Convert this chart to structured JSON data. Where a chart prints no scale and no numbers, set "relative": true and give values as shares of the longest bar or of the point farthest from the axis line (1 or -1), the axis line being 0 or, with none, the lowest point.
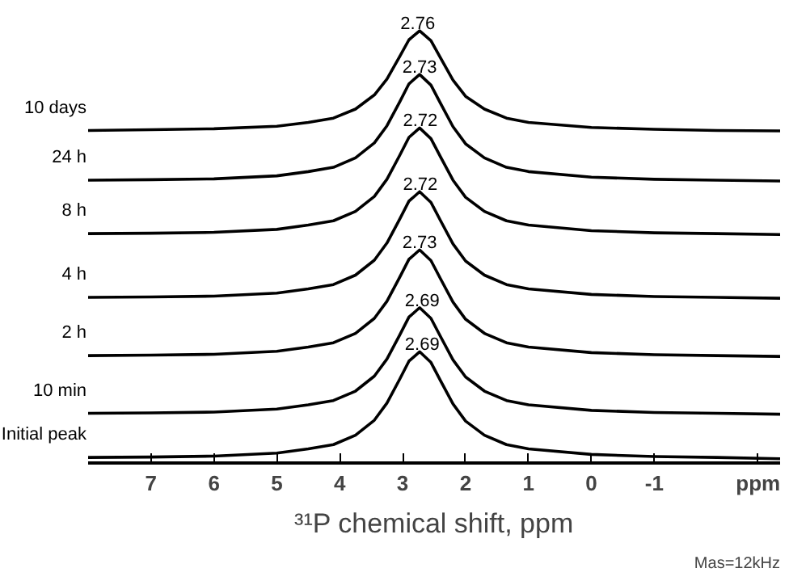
{
  "chart_data": {
    "type": "line",
    "relative": true,
    "xlabel": "³¹P chemical shift, ppm",
    "xlim": [
      8,
      -3
    ],
    "xticks": [
      7,
      6,
      5,
      4,
      3,
      2,
      1,
      0,
      -1,
      {
        "value": -2.65,
        "label": "ppm"
      }
    ],
    "x": [
      8,
      7,
      6,
      5,
      4.5,
      4.1,
      3.75,
      3.45,
      3.25,
      3.05,
      2.9,
      2.73,
      2.55,
      2.4,
      2.2,
      2.0,
      1.7,
      1.35,
      1,
      0,
      -1,
      -2,
      -3
    ],
    "series": [
      {
        "name": "10 days",
        "color": "#000000",
        "values": [
          0.767,
          0.769,
          0.771,
          0.777,
          0.786,
          0.796,
          0.817,
          0.85,
          0.887,
          0.939,
          0.979,
          1.0,
          0.977,
          0.937,
          0.885,
          0.847,
          0.817,
          0.796,
          0.786,
          0.774,
          0.77,
          0.767,
          0.766
        ]
      },
      {
        "name": "24 h",
        "color": "#000000",
        "values": [
          0.651,
          0.652,
          0.654,
          0.661,
          0.671,
          0.681,
          0.703,
          0.738,
          0.778,
          0.833,
          0.876,
          0.898,
          0.873,
          0.831,
          0.776,
          0.736,
          0.703,
          0.681,
          0.671,
          0.658,
          0.653,
          0.651,
          0.649
        ]
      },
      {
        "name": "8 h",
        "color": "#000000",
        "values": [
          0.526,
          0.527,
          0.529,
          0.536,
          0.546,
          0.556,
          0.578,
          0.613,
          0.653,
          0.708,
          0.751,
          0.773,
          0.748,
          0.706,
          0.651,
          0.611,
          0.578,
          0.556,
          0.546,
          0.533,
          0.528,
          0.526,
          0.524
        ]
      },
      {
        "name": "4 h",
        "color": "#000000",
        "values": [
          0.377,
          0.378,
          0.38,
          0.387,
          0.397,
          0.407,
          0.429,
          0.464,
          0.504,
          0.559,
          0.602,
          0.624,
          0.599,
          0.557,
          0.502,
          0.462,
          0.429,
          0.407,
          0.397,
          0.384,
          0.379,
          0.377,
          0.375
        ]
      },
      {
        "name": "2 h",
        "color": "#000000",
        "values": [
          0.241,
          0.242,
          0.244,
          0.251,
          0.261,
          0.271,
          0.293,
          0.328,
          0.368,
          0.423,
          0.466,
          0.488,
          0.463,
          0.421,
          0.366,
          0.326,
          0.293,
          0.271,
          0.261,
          0.248,
          0.243,
          0.241,
          0.239
        ]
      },
      {
        "name": "10 min",
        "color": "#000000",
        "values": [
          0.106,
          0.107,
          0.109,
          0.116,
          0.126,
          0.136,
          0.158,
          0.193,
          0.233,
          0.288,
          0.331,
          0.353,
          0.328,
          0.286,
          0.231,
          0.191,
          0.158,
          0.136,
          0.126,
          0.113,
          0.108,
          0.106,
          0.104
        ]
      },
      {
        "name": "Initial peak",
        "color": "#000000",
        "values": [
          0.003,
          0.004,
          0.006,
          0.013,
          0.023,
          0.033,
          0.055,
          0.09,
          0.13,
          0.185,
          0.228,
          0.25,
          0.225,
          0.183,
          0.128,
          0.088,
          0.055,
          0.033,
          0.023,
          0.01,
          0.005,
          0.003,
          0.0
        ]
      }
    ],
    "annotations": [
      {
        "text": "2.76",
        "x": 2.76,
        "y": 1.0
      },
      {
        "text": "2.73",
        "x": 2.73,
        "y": 0.898
      },
      {
        "text": "2.72",
        "x": 2.72,
        "y": 0.773
      },
      {
        "text": "2.72",
        "x": 2.72,
        "y": 0.624
      },
      {
        "text": "2.73",
        "x": 2.73,
        "y": 0.488
      },
      {
        "text": "2.69",
        "x": 2.69,
        "y": 0.353
      },
      {
        "text": "2.69",
        "x": 2.69,
        "y": 0.25
      },
      "Mas=12kHz"
    ],
    "grid": false,
    "marker": "none",
    "line_style": "solid"
  }
}
